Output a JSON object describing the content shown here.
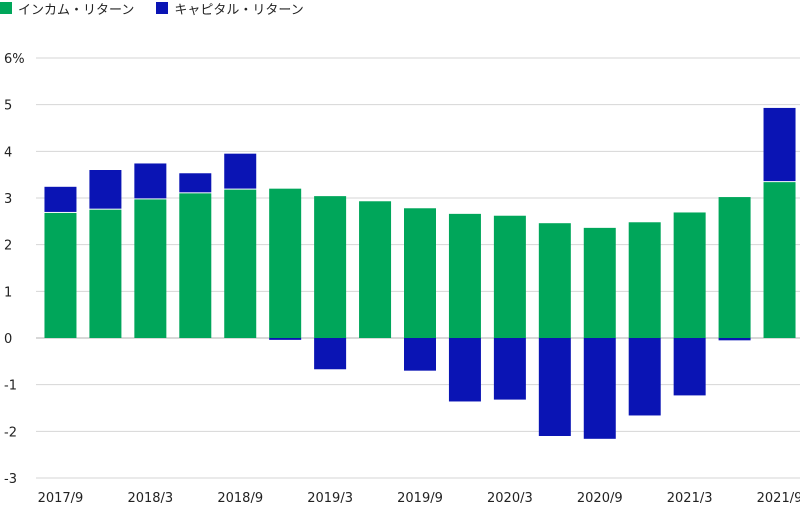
{
  "chart_data": {
    "type": "bar",
    "stacked": true,
    "ylabel": "",
    "ylim": [
      -3,
      6
    ],
    "yticks": [
      "-3",
      "-2",
      "-1",
      "0",
      "1",
      "2",
      "3",
      "4",
      "5",
      "6%"
    ],
    "ytick_values": [
      -3,
      -2,
      -1,
      0,
      1,
      2,
      3,
      4,
      5,
      6
    ],
    "x_tick_labels": [
      "2017/9",
      "2018/3",
      "2018/9",
      "2019/3",
      "2019/9",
      "2020/3",
      "2020/9",
      "2021/3",
      "2021/9"
    ],
    "x_tick_every": 2,
    "categories": [
      "2017/9",
      "2017/12",
      "2018/3",
      "2018/6",
      "2018/9",
      "2018/12",
      "2019/3",
      "2019/6",
      "2019/9",
      "2019/12",
      "2020/3",
      "2020/6",
      "2020/9",
      "2020/12",
      "2021/3",
      "2021/6",
      "2021/9"
    ],
    "series": [
      {
        "name": "インカム・リターン",
        "color": "#00a65a",
        "values": [
          2.68,
          2.75,
          2.97,
          3.1,
          3.18,
          3.2,
          3.04,
          2.93,
          2.78,
          2.66,
          2.62,
          2.46,
          2.36,
          2.48,
          2.69,
          3.02,
          3.34
        ]
      },
      {
        "name": "キャピタル・リターン",
        "color": "#0a14b4",
        "values": [
          0.56,
          0.85,
          0.77,
          0.43,
          0.77,
          -0.04,
          -0.67,
          0.0,
          -0.7,
          -1.36,
          -1.32,
          -2.1,
          -2.16,
          -1.66,
          -1.23,
          -0.05,
          1.59
        ]
      }
    ],
    "grid": true,
    "legend_position": "top-left"
  }
}
